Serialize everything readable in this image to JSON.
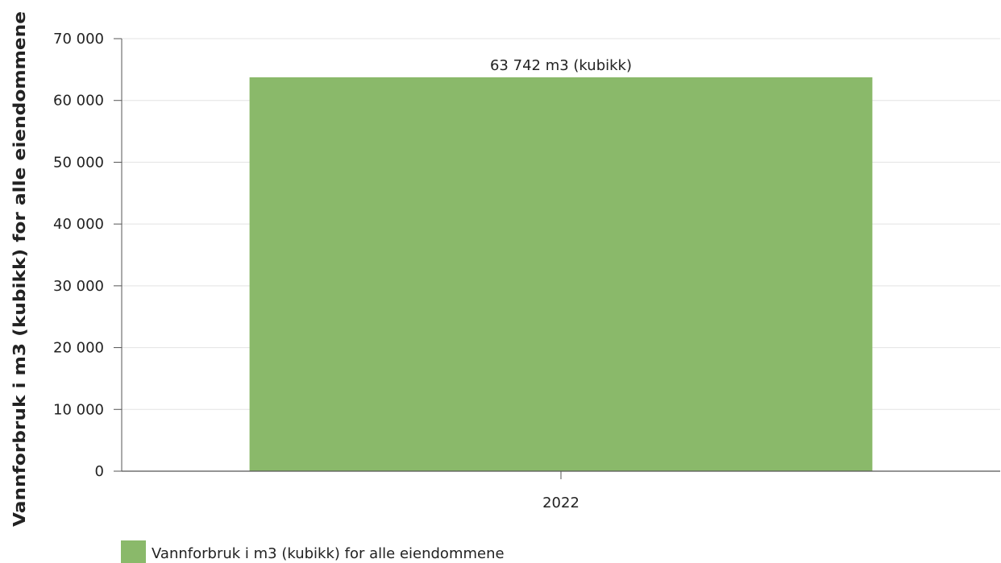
{
  "chart_data": {
    "type": "bar",
    "categories": [
      "2022"
    ],
    "series": [
      {
        "name": "Vannforbruk i m3 (kubikk) for alle eiendommene",
        "values": [
          63742
        ],
        "color": "#8ab96a",
        "data_labels": [
          "63 742 m3 (kubikk)"
        ]
      }
    ],
    "title": "",
    "xlabel": "",
    "ylabel": "Vannforbruk i m3 (kubikk) for alle eiendommene",
    "ylim": [
      0,
      70000
    ],
    "yticks": [
      0,
      10000,
      20000,
      30000,
      40000,
      50000,
      60000,
      70000
    ],
    "ytick_labels": [
      "0",
      "10 000",
      "20 000",
      "30 000",
      "40 000",
      "50 000",
      "60 000",
      "70 000"
    ],
    "grid": true,
    "legend": "bottom-left"
  }
}
